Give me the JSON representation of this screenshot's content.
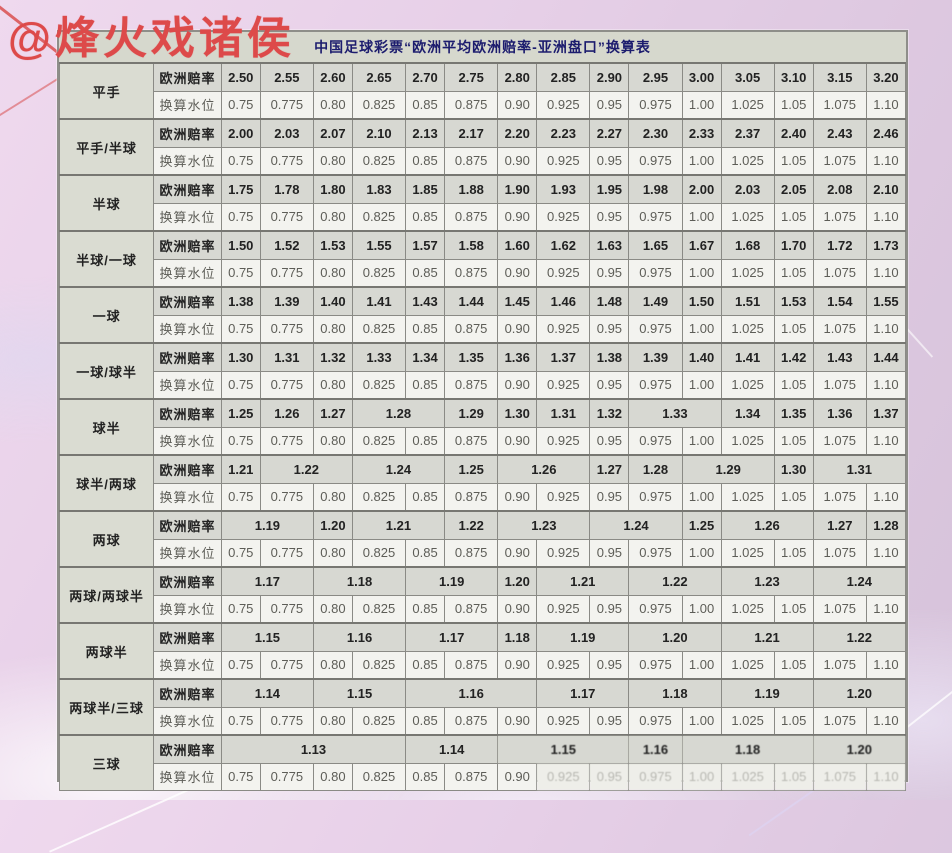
{
  "watermark": "@烽火戏诸侯",
  "table": {
    "title": "中国足球彩票“欧洲平均欧洲赔率-亚洲盘口”换算表",
    "row_headers": {
      "odds": "欧洲赔率",
      "water": "换算水位"
    },
    "water_values": [
      "0.75",
      "0.775",
      "0.80",
      "0.825",
      "0.85",
      "0.875",
      "0.90",
      "0.925",
      "0.95",
      "0.975",
      "1.00",
      "1.025",
      "1.05",
      "1.075",
      "1.10"
    ],
    "groups": [
      {
        "label": "平手",
        "odds": [
          {
            "v": "2.50",
            "s": 1
          },
          {
            "v": "2.55",
            "s": 1
          },
          {
            "v": "2.60",
            "s": 1
          },
          {
            "v": "2.65",
            "s": 1
          },
          {
            "v": "2.70",
            "s": 1
          },
          {
            "v": "2.75",
            "s": 1
          },
          {
            "v": "2.80",
            "s": 1
          },
          {
            "v": "2.85",
            "s": 1
          },
          {
            "v": "2.90",
            "s": 1
          },
          {
            "v": "2.95",
            "s": 1
          },
          {
            "v": "3.00",
            "s": 1
          },
          {
            "v": "3.05",
            "s": 1
          },
          {
            "v": "3.10",
            "s": 1
          },
          {
            "v": "3.15",
            "s": 1
          },
          {
            "v": "3.20",
            "s": 1
          }
        ]
      },
      {
        "label": "平手/半球",
        "odds": [
          {
            "v": "2.00",
            "s": 1
          },
          {
            "v": "2.03",
            "s": 1
          },
          {
            "v": "2.07",
            "s": 1
          },
          {
            "v": "2.10",
            "s": 1
          },
          {
            "v": "2.13",
            "s": 1
          },
          {
            "v": "2.17",
            "s": 1
          },
          {
            "v": "2.20",
            "s": 1
          },
          {
            "v": "2.23",
            "s": 1
          },
          {
            "v": "2.27",
            "s": 1
          },
          {
            "v": "2.30",
            "s": 1
          },
          {
            "v": "2.33",
            "s": 1
          },
          {
            "v": "2.37",
            "s": 1
          },
          {
            "v": "2.40",
            "s": 1
          },
          {
            "v": "2.43",
            "s": 1
          },
          {
            "v": "2.46",
            "s": 1
          }
        ]
      },
      {
        "label": "半球",
        "odds": [
          {
            "v": "1.75",
            "s": 1
          },
          {
            "v": "1.78",
            "s": 1
          },
          {
            "v": "1.80",
            "s": 1
          },
          {
            "v": "1.83",
            "s": 1
          },
          {
            "v": "1.85",
            "s": 1
          },
          {
            "v": "1.88",
            "s": 1
          },
          {
            "v": "1.90",
            "s": 1
          },
          {
            "v": "1.93",
            "s": 1
          },
          {
            "v": "1.95",
            "s": 1
          },
          {
            "v": "1.98",
            "s": 1
          },
          {
            "v": "2.00",
            "s": 1
          },
          {
            "v": "2.03",
            "s": 1
          },
          {
            "v": "2.05",
            "s": 1
          },
          {
            "v": "2.08",
            "s": 1
          },
          {
            "v": "2.10",
            "s": 1
          }
        ]
      },
      {
        "label": "半球/一球",
        "odds": [
          {
            "v": "1.50",
            "s": 1
          },
          {
            "v": "1.52",
            "s": 1
          },
          {
            "v": "1.53",
            "s": 1
          },
          {
            "v": "1.55",
            "s": 1
          },
          {
            "v": "1.57",
            "s": 1
          },
          {
            "v": "1.58",
            "s": 1
          },
          {
            "v": "1.60",
            "s": 1
          },
          {
            "v": "1.62",
            "s": 1
          },
          {
            "v": "1.63",
            "s": 1
          },
          {
            "v": "1.65",
            "s": 1
          },
          {
            "v": "1.67",
            "s": 1
          },
          {
            "v": "1.68",
            "s": 1
          },
          {
            "v": "1.70",
            "s": 1
          },
          {
            "v": "1.72",
            "s": 1
          },
          {
            "v": "1.73",
            "s": 1
          }
        ]
      },
      {
        "label": "一球",
        "odds": [
          {
            "v": "1.38",
            "s": 1
          },
          {
            "v": "1.39",
            "s": 1
          },
          {
            "v": "1.40",
            "s": 1
          },
          {
            "v": "1.41",
            "s": 1
          },
          {
            "v": "1.43",
            "s": 1
          },
          {
            "v": "1.44",
            "s": 1
          },
          {
            "v": "1.45",
            "s": 1
          },
          {
            "v": "1.46",
            "s": 1
          },
          {
            "v": "1.48",
            "s": 1
          },
          {
            "v": "1.49",
            "s": 1
          },
          {
            "v": "1.50",
            "s": 1
          },
          {
            "v": "1.51",
            "s": 1
          },
          {
            "v": "1.53",
            "s": 1
          },
          {
            "v": "1.54",
            "s": 1
          },
          {
            "v": "1.55",
            "s": 1
          }
        ]
      },
      {
        "label": "一球/球半",
        "odds": [
          {
            "v": "1.30",
            "s": 1
          },
          {
            "v": "1.31",
            "s": 1
          },
          {
            "v": "1.32",
            "s": 1
          },
          {
            "v": "1.33",
            "s": 1
          },
          {
            "v": "1.34",
            "s": 1
          },
          {
            "v": "1.35",
            "s": 1
          },
          {
            "v": "1.36",
            "s": 1
          },
          {
            "v": "1.37",
            "s": 1
          },
          {
            "v": "1.38",
            "s": 1
          },
          {
            "v": "1.39",
            "s": 1
          },
          {
            "v": "1.40",
            "s": 1
          },
          {
            "v": "1.41",
            "s": 1
          },
          {
            "v": "1.42",
            "s": 1
          },
          {
            "v": "1.43",
            "s": 1
          },
          {
            "v": "1.44",
            "s": 1
          }
        ]
      },
      {
        "label": "球半",
        "odds": [
          {
            "v": "1.25",
            "s": 1
          },
          {
            "v": "1.26",
            "s": 1
          },
          {
            "v": "1.27",
            "s": 1
          },
          {
            "v": "1.28",
            "s": 2
          },
          {
            "v": "1.29",
            "s": 1
          },
          {
            "v": "1.30",
            "s": 1
          },
          {
            "v": "1.31",
            "s": 1
          },
          {
            "v": "1.32",
            "s": 1
          },
          {
            "v": "1.33",
            "s": 2
          },
          {
            "v": "1.34",
            "s": 1
          },
          {
            "v": "1.35",
            "s": 1
          },
          {
            "v": "1.36",
            "s": 1
          },
          {
            "v": "1.37",
            "s": 1
          }
        ]
      },
      {
        "label": "球半/两球",
        "odds": [
          {
            "v": "1.21",
            "s": 1
          },
          {
            "v": "1.22",
            "s": 2
          },
          {
            "v": "1.24",
            "s": 2
          },
          {
            "v": "1.25",
            "s": 1
          },
          {
            "v": "1.26",
            "s": 2
          },
          {
            "v": "1.27",
            "s": 1
          },
          {
            "v": "1.28",
            "s": 1
          },
          {
            "v": "1.29",
            "s": 2
          },
          {
            "v": "1.30",
            "s": 1
          },
          {
            "v": "1.31",
            "s": 2
          }
        ]
      },
      {
        "label": "两球",
        "odds": [
          {
            "v": "1.19",
            "s": 2
          },
          {
            "v": "1.20",
            "s": 1
          },
          {
            "v": "1.21",
            "s": 2
          },
          {
            "v": "1.22",
            "s": 1
          },
          {
            "v": "1.23",
            "s": 2
          },
          {
            "v": "1.24",
            "s": 2
          },
          {
            "v": "1.25",
            "s": 1
          },
          {
            "v": "1.26",
            "s": 2
          },
          {
            "v": "1.27",
            "s": 1
          },
          {
            "v": "1.28",
            "s": 1
          }
        ]
      },
      {
        "label": "两球/两球半",
        "odds": [
          {
            "v": "1.17",
            "s": 2
          },
          {
            "v": "1.18",
            "s": 2
          },
          {
            "v": "1.19",
            "s": 2
          },
          {
            "v": "1.20",
            "s": 1
          },
          {
            "v": "1.21",
            "s": 2
          },
          {
            "v": "1.22",
            "s": 2
          },
          {
            "v": "1.23",
            "s": 2
          },
          {
            "v": "1.24",
            "s": 2
          }
        ]
      },
      {
        "label": "两球半",
        "odds": [
          {
            "v": "1.15",
            "s": 2
          },
          {
            "v": "1.16",
            "s": 2
          },
          {
            "v": "1.17",
            "s": 2
          },
          {
            "v": "1.18",
            "s": 1
          },
          {
            "v": "1.19",
            "s": 2
          },
          {
            "v": "1.20",
            "s": 2
          },
          {
            "v": "1.21",
            "s": 2
          },
          {
            "v": "1.22",
            "s": 2
          }
        ]
      },
      {
        "label": "两球半/三球",
        "odds": [
          {
            "v": "1.14",
            "s": 2
          },
          {
            "v": "1.15",
            "s": 2
          },
          {
            "v": "1.16",
            "s": 3
          },
          {
            "v": "1.17",
            "s": 2
          },
          {
            "v": "1.18",
            "s": 2
          },
          {
            "v": "1.19",
            "s": 2
          },
          {
            "v": "1.20",
            "s": 2
          }
        ]
      },
      {
        "label": "三球",
        "odds": [
          {
            "v": "1.13",
            "s": 4
          },
          {
            "v": "1.14",
            "s": 2
          },
          {
            "v": "1.15",
            "s": 3,
            "f": true
          },
          {
            "v": "1.16",
            "s": 1,
            "f": true
          },
          {
            "v": "1.18",
            "s": 3,
            "f": true
          },
          {
            "v": "1.20",
            "s": 2,
            "f": true
          }
        ],
        "water_faded_from": 7
      }
    ]
  },
  "colors": {
    "watermark_red": "#dd4a4a",
    "title_navy": "#1c1c6e",
    "sheet_bg": "#d6d8cd",
    "odds_cell_bg": "#d7d8d2",
    "water_cell_bg": "#f3f3ef",
    "grid_border": "#8a8a85",
    "page_bg_pink": "#e7d0e8"
  }
}
